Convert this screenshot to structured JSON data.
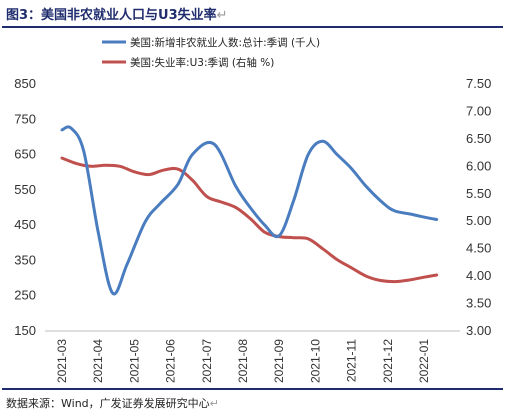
{
  "figure": {
    "title": "图3：美国非农就业人口与U3失业率",
    "return_mark": "↵",
    "source": "数据来源：Wind，广发证券发展研究中心"
  },
  "colors": {
    "rule": "#1f2d6e",
    "payrolls": "#4a7dc0",
    "unemployment": "#c0504d"
  },
  "chart_data": {
    "type": "line",
    "title": "美国非农就业人口与U3失业率",
    "categories": [
      "2021-03",
      "2021-04",
      "2021-05",
      "2021-06",
      "2021-07",
      "2021-08",
      "2021-09",
      "2021-10",
      "2021-11",
      "2021-12",
      "2022-01"
    ],
    "left_axis": {
      "ylim": [
        150,
        850
      ],
      "ticks": [
        150,
        250,
        350,
        450,
        550,
        650,
        750,
        850
      ]
    },
    "right_axis": {
      "ylim": [
        3.0,
        7.5
      ],
      "ticks": [
        "3.00",
        "3.50",
        "4.00",
        "4.50",
        "5.00",
        "5.50",
        "6.00",
        "6.50",
        "7.00",
        "7.50"
      ]
    },
    "legend_position": "top-right",
    "grid": false,
    "series": [
      {
        "name": "美国:新增非农就业人数:总计:季调 (千人)",
        "axis": "left",
        "color": "#4a7dc0",
        "x": [
          0,
          0.25,
          0.6,
          1.0,
          1.4,
          1.8,
          2.3,
          2.7,
          3.2,
          3.6,
          4.2,
          4.8,
          5.2,
          5.6,
          6.0,
          6.4,
          6.8,
          7.2,
          7.6,
          8.0,
          8.4,
          8.9,
          9.2,
          9.6,
          9.9,
          10.35
        ],
        "y": [
          720,
          725,
          660,
          430,
          257,
          340,
          460,
          510,
          565,
          650,
          680,
          560,
          500,
          450,
          420,
          520,
          650,
          688,
          650,
          610,
          560,
          510,
          490,
          482,
          475,
          466
        ]
      },
      {
        "name": "美国:失业率:U3:季调 (右轴 %)",
        "axis": "right",
        "color": "#c0504d",
        "x": [
          0,
          0.4,
          0.8,
          1.2,
          1.6,
          2.0,
          2.4,
          2.8,
          3.2,
          3.6,
          4.0,
          4.4,
          4.8,
          5.2,
          5.6,
          6.0,
          6.4,
          6.8,
          7.2,
          7.6,
          8.0,
          8.4,
          8.8,
          9.2,
          9.6,
          10.0,
          10.35
        ],
        "y": [
          6.15,
          6.05,
          6.0,
          6.02,
          6.0,
          5.9,
          5.85,
          5.93,
          5.95,
          5.75,
          5.45,
          5.35,
          5.25,
          5.05,
          4.8,
          4.72,
          4.7,
          4.68,
          4.5,
          4.3,
          4.15,
          4.0,
          3.92,
          3.9,
          3.93,
          3.98,
          4.02
        ]
      }
    ]
  }
}
